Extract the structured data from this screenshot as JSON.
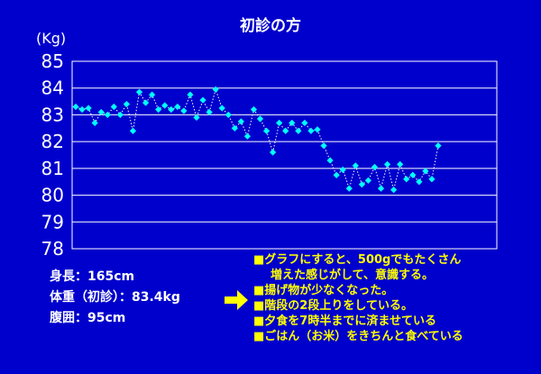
{
  "chart_data": {
    "type": "line",
    "title": "初診の方",
    "unit_label": "(Kg)",
    "ylim": [
      78,
      85
    ],
    "y_ticks": [
      "78",
      "79",
      "80",
      "81",
      "82",
      "83",
      "84",
      "85"
    ],
    "grid": true,
    "colors": {
      "background": "#0000cc",
      "plot": "#0000cc",
      "line": "#ffffff",
      "marker": "#00ffff",
      "grid": "#ffffff"
    },
    "series": [
      {
        "values": [
          83.3,
          83.2,
          83.25,
          82.7,
          83.1,
          83.0,
          83.3,
          83.0,
          83.4,
          82.4,
          83.85,
          83.45,
          83.75,
          83.2,
          83.35,
          83.2,
          83.3,
          83.15,
          83.75,
          82.9,
          83.55,
          83.1,
          83.95,
          83.25,
          83.0,
          82.5,
          82.75,
          82.2,
          83.2,
          82.85,
          82.4,
          81.6,
          82.7,
          82.4,
          82.7,
          82.4,
          82.7,
          82.4,
          82.45,
          81.85,
          81.3,
          80.75,
          80.95,
          80.25,
          81.1,
          80.4,
          80.55,
          81.05,
          80.25,
          81.15,
          80.2,
          81.15,
          80.6,
          80.75,
          80.5,
          80.9,
          80.6,
          81.85
        ]
      }
    ]
  },
  "stats": {
    "height": "身長：165cm",
    "weight": "体重（初診）：83.4kg",
    "waist": "腹囲：95cm"
  },
  "notes": [
    "■グラフにすると、500gでもたくさん",
    "増えた感じがして、意識する。",
    "■揚げ物が少なくなった。",
    "■階段の2段上りをしている。",
    "■夕食を7時半までに済ませている",
    "■ごはん（お米）をきちんと食べている"
  ]
}
